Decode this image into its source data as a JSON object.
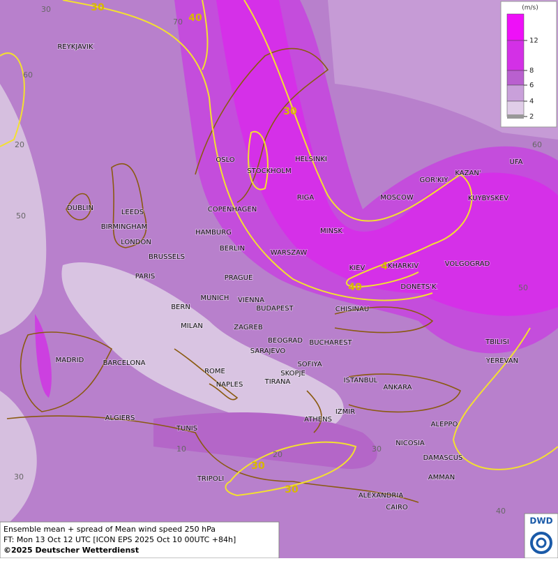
{
  "legend": {
    "unit": "(m/s)",
    "ticks": [
      "12",
      "8",
      "6",
      "4",
      "2"
    ]
  },
  "contour_labels": [
    "30",
    "40",
    "30",
    "4",
    "40",
    "30",
    "30"
  ],
  "grid_labels": [
    "30",
    "70",
    "60",
    "20",
    "50",
    "60",
    "50",
    "10",
    "20",
    "30",
    "40",
    "30"
  ],
  "cities": [
    "REYKJAVIK",
    "OSLO",
    "STOCKHOLM",
    "HELSINKI",
    "DUBLIN",
    "LEEDS",
    "BIRMINGHAM",
    "LONDON",
    "COPENHAGEN",
    "RIGA",
    "MOSCOW",
    "GOR'KIY",
    "KAZAN'",
    "UFA",
    "KUYBYSKEV",
    "HAMBURG",
    "BERLIN",
    "MINSK",
    "WARSZAW",
    "BRUSSELS",
    "PARIS",
    "PRAGUE",
    "KIEV",
    "KHARKIV",
    "VOLGOGRAD",
    "DONETS'K",
    "MUNICH",
    "VIENNA",
    "BUDAPEST",
    "CHISINAU",
    "BERN",
    "MILAN",
    "ZAGREB",
    "BEOGRAD",
    "BUCHAREST",
    "TBILISI",
    "YEREVAN",
    "MADRID",
    "BARCELONA",
    "SARAJEVO",
    "SOFIYA",
    "ROME",
    "SKOPJE",
    "TIRANA",
    "NAPLES",
    "ISTANBUL",
    "ANKARA",
    "ALGIERS",
    "TUNIS",
    "ATHENS",
    "IZMIR",
    "ALEPPO",
    "NICOSIA",
    "DAMASCUS",
    "TRIPOLI",
    "AMMAN",
    "ALEXANDRIA",
    "CAIRO"
  ],
  "footer": {
    "lines": [
      "Ensemble mean + spread of Mean wind speed 250 hPa",
      "FT: Mon 13 Oct 12 UTC [ICON EPS 2025 Oct 10 00UTC +84h]",
      "©2025 Deutscher Wetterdienst"
    ]
  },
  "logo": "DWD"
}
